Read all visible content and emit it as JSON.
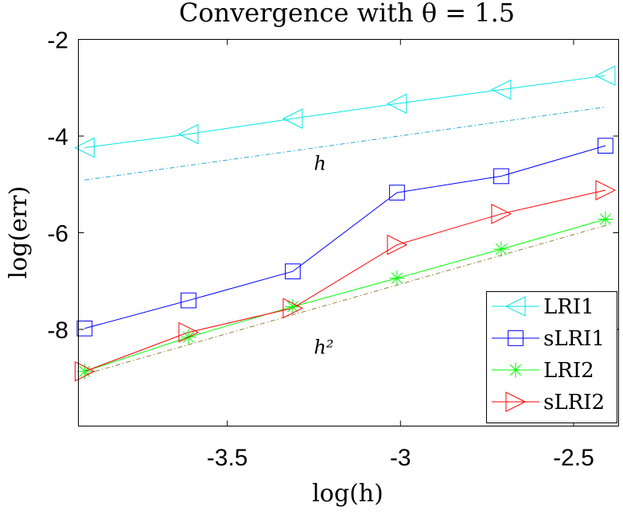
{
  "chart_data": {
    "type": "line",
    "title": "Convergence with θ = 1.5",
    "xlabel": "log(h)",
    "ylabel": "log(err)",
    "xlim": [
      -3.93,
      -2.37
    ],
    "ylim": [
      -10,
      -2
    ],
    "xticks": [
      -3.5,
      -3,
      -2.5
    ],
    "xtick_labels": [
      "-3.5",
      "-3",
      "-2.5"
    ],
    "yticks": [
      -8,
      -6,
      -4,
      -2
    ],
    "ytick_labels": [
      "-8",
      "-6",
      "-4",
      "-2"
    ],
    "grid": false,
    "legend_position": "bottom-right",
    "x": [
      -3.912,
      -3.612,
      -3.311,
      -3.01,
      -2.709,
      -2.408
    ],
    "series": [
      {
        "name": "LRI1",
        "color": "#00e5e5",
        "marker": "triangle-left",
        "values": [
          -4.24,
          -3.96,
          -3.64,
          -3.33,
          -3.04,
          -2.75
        ]
      },
      {
        "name": "sLRI1",
        "color": "#0000ff",
        "marker": "square",
        "values": [
          -7.98,
          -7.4,
          -6.8,
          -5.17,
          -4.83,
          -4.2
        ]
      },
      {
        "name": "LRI2",
        "color": "#00ff00",
        "marker": "asterisk",
        "values": [
          -8.87,
          -8.16,
          -7.53,
          -6.94,
          -6.34,
          -5.72
        ]
      },
      {
        "name": "sLRI2",
        "color": "#ff0000",
        "marker": "triangle-right",
        "values": [
          -8.87,
          -8.06,
          -7.56,
          -6.25,
          -5.61,
          -5.12
        ]
      }
    ],
    "reference_lines": [
      {
        "label": "h",
        "slope": 1,
        "color": "#2aa8d8",
        "style": "dash-dot",
        "x": [
          -3.912,
          -2.408
        ],
        "values": [
          -4.91,
          -3.4
        ],
        "label_pos": [
          -3.25,
          -4.7
        ]
      },
      {
        "label": "h²",
        "slope": 2,
        "color": "#9a8040",
        "style": "dash-dot",
        "x": [
          -3.912,
          -2.408
        ],
        "values": [
          -8.93,
          -5.85
        ],
        "label_pos": [
          -3.25,
          -8.5
        ]
      }
    ]
  }
}
